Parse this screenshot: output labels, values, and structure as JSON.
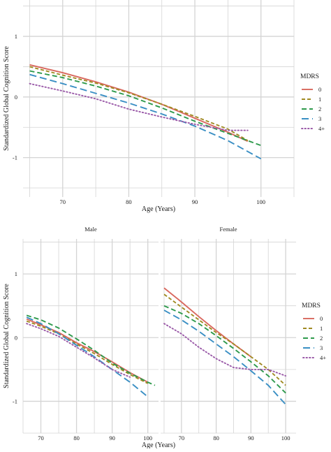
{
  "colors": {
    "0": "#d9685e",
    "1": "#a08a22",
    "2": "#2e9a4c",
    "3": "#3a8fc4",
    "4+": "#9a5aa8",
    "grid": "#d4d4d4"
  },
  "chart_data": [
    {
      "type": "line",
      "title": "",
      "xlabel": "Age (Years)",
      "ylabel": "Standardized Global Cognition Score",
      "xlim": [
        64,
        105
      ],
      "ylim": [
        -1.65,
        1.6
      ],
      "xticks": [
        70,
        80,
        90,
        100
      ],
      "yticks": [
        -1,
        0,
        1
      ],
      "grid": true,
      "legend": {
        "title": "MDRS",
        "position": "right"
      },
      "series": [
        {
          "name": "0",
          "dash": "solid",
          "x": [
            65,
            70,
            75,
            80,
            85,
            90,
            95,
            98
          ],
          "y": [
            0.53,
            0.4,
            0.25,
            0.08,
            -0.12,
            -0.35,
            -0.58,
            -0.73
          ]
        },
        {
          "name": "1",
          "dash": "short",
          "x": [
            65,
            70,
            75,
            80,
            85,
            90,
            95,
            98
          ],
          "y": [
            0.5,
            0.36,
            0.23,
            0.07,
            -0.12,
            -0.32,
            -0.53,
            -0.72
          ]
        },
        {
          "name": "2",
          "dash": "long",
          "x": [
            65,
            70,
            75,
            80,
            85,
            90,
            95,
            100
          ],
          "y": [
            0.43,
            0.32,
            0.18,
            0.02,
            -0.18,
            -0.4,
            -0.6,
            -0.8
          ]
        },
        {
          "name": "3",
          "dash": "longer",
          "x": [
            65,
            70,
            75,
            80,
            85,
            90,
            95,
            100
          ],
          "y": [
            0.37,
            0.22,
            0.06,
            -0.1,
            -0.28,
            -0.48,
            -0.72,
            -1.02
          ]
        },
        {
          "name": "4+",
          "dash": "dotted",
          "x": [
            65,
            70,
            75,
            80,
            85,
            90,
            95,
            98
          ],
          "y": [
            0.22,
            0.1,
            -0.03,
            -0.2,
            -0.33,
            -0.45,
            -0.55,
            -0.55
          ]
        }
      ]
    },
    {
      "type": "line",
      "title": "Male",
      "xlabel": "Age (Years)",
      "ylabel": "Standardized Global Cognition Score",
      "xlim": [
        65,
        103
      ],
      "ylim": [
        -1.5,
        1.55
      ],
      "xticks": [
        70,
        80,
        90,
        100
      ],
      "yticks": [
        -1,
        0,
        1
      ],
      "grid": true,
      "series": [
        {
          "name": "0",
          "dash": "solid",
          "x": [
            66,
            70,
            75,
            80,
            85,
            90,
            95,
            100
          ],
          "y": [
            0.29,
            0.2,
            0.08,
            -0.08,
            -0.22,
            -0.38,
            -0.55,
            -0.7
          ]
        },
        {
          "name": "1",
          "dash": "short",
          "x": [
            66,
            70,
            75,
            80,
            85,
            90,
            95,
            100
          ],
          "y": [
            0.26,
            0.18,
            0.06,
            -0.1,
            -0.25,
            -0.42,
            -0.58,
            -0.72
          ]
        },
        {
          "name": "2",
          "dash": "long",
          "x": [
            66,
            70,
            75,
            80,
            85,
            90,
            95,
            100,
            102
          ],
          "y": [
            0.35,
            0.28,
            0.15,
            -0.02,
            -0.2,
            -0.4,
            -0.56,
            -0.7,
            -0.75
          ]
        },
        {
          "name": "3",
          "dash": "longer",
          "x": [
            66,
            70,
            75,
            80,
            85,
            90,
            95,
            100
          ],
          "y": [
            0.32,
            0.22,
            0.06,
            -0.12,
            -0.3,
            -0.5,
            -0.7,
            -0.93
          ]
        },
        {
          "name": "4+",
          "dash": "dotted",
          "x": [
            66,
            70,
            75,
            80,
            85,
            90,
            95
          ],
          "y": [
            0.22,
            0.14,
            0.02,
            -0.15,
            -0.32,
            -0.5,
            -0.62
          ]
        }
      ]
    },
    {
      "type": "line",
      "title": "Female",
      "xlabel": "",
      "ylabel": "",
      "xlim": [
        64,
        103
      ],
      "ylim": [
        -1.5,
        1.55
      ],
      "xticks": [
        70,
        80,
        90,
        100
      ],
      "yticks": [
        -1,
        0,
        1
      ],
      "grid": true,
      "legend": {
        "title": "MDRS",
        "position": "right"
      },
      "series": [
        {
          "name": "0",
          "dash": "solid",
          "x": [
            65,
            70,
            75,
            80,
            85,
            90
          ],
          "y": [
            0.78,
            0.56,
            0.33,
            0.11,
            -0.1,
            -0.3
          ]
        },
        {
          "name": "1",
          "dash": "short",
          "x": [
            65,
            70,
            75,
            80,
            85,
            90,
            95,
            100
          ],
          "y": [
            0.68,
            0.48,
            0.28,
            0.08,
            -0.1,
            -0.3,
            -0.5,
            -0.75
          ]
        },
        {
          "name": "2",
          "dash": "long",
          "x": [
            65,
            70,
            75,
            80,
            85,
            90,
            95,
            100
          ],
          "y": [
            0.5,
            0.38,
            0.22,
            0.03,
            -0.17,
            -0.38,
            -0.6,
            -0.87
          ]
        },
        {
          "name": "3",
          "dash": "longer",
          "x": [
            65,
            70,
            75,
            80,
            85,
            90,
            95,
            100
          ],
          "y": [
            0.43,
            0.28,
            0.1,
            -0.1,
            -0.3,
            -0.52,
            -0.75,
            -1.05
          ]
        },
        {
          "name": "4+",
          "dash": "dotted",
          "x": [
            65,
            70,
            75,
            80,
            85,
            90,
            95,
            100
          ],
          "y": [
            0.22,
            0.06,
            -0.15,
            -0.33,
            -0.47,
            -0.5,
            -0.5,
            -0.6
          ]
        }
      ]
    }
  ]
}
